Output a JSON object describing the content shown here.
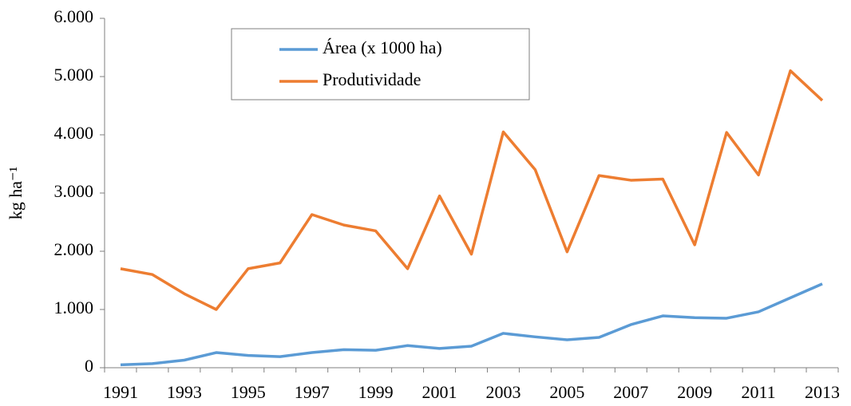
{
  "chart_data": {
    "type": "line",
    "ylabel": "kg ha⁻¹",
    "categories": [
      "1991",
      null,
      "1993",
      null,
      "1995",
      null,
      "1997",
      null,
      "1999",
      null,
      "2001",
      null,
      "2003",
      null,
      "2005",
      null,
      "2007",
      null,
      "2009",
      null,
      "2011",
      null,
      "2013"
    ],
    "series": [
      {
        "name": "Área (x 1000 ha)",
        "color": "#5b9bd5",
        "values": [
          50,
          70,
          130,
          260,
          210,
          190,
          260,
          310,
          300,
          380,
          330,
          370,
          590,
          530,
          480,
          520,
          740,
          890,
          860,
          850,
          960,
          1200,
          1440
        ]
      },
      {
        "name": "Produtividade",
        "color": "#ed7d31",
        "values": [
          1700,
          1600,
          1270,
          1000,
          1700,
          1800,
          2630,
          2450,
          2350,
          1700,
          2950,
          1950,
          4050,
          3400,
          1990,
          3300,
          3220,
          3240,
          2110,
          4040,
          3310,
          5100,
          4590
        ]
      }
    ],
    "ylim": [
      0,
      6000
    ],
    "yticks": [
      0,
      {
        "value": 1000,
        "label": "1.000"
      },
      {
        "value": 2000,
        "label": "2.000"
      },
      {
        "value": 3000,
        "label": "3.000"
      },
      {
        "value": 4000,
        "label": "4.000"
      },
      {
        "value": 5000,
        "label": "5.000"
      },
      {
        "value": 6000,
        "label": "6.000"
      }
    ],
    "grid": false,
    "legend": "top-left"
  }
}
